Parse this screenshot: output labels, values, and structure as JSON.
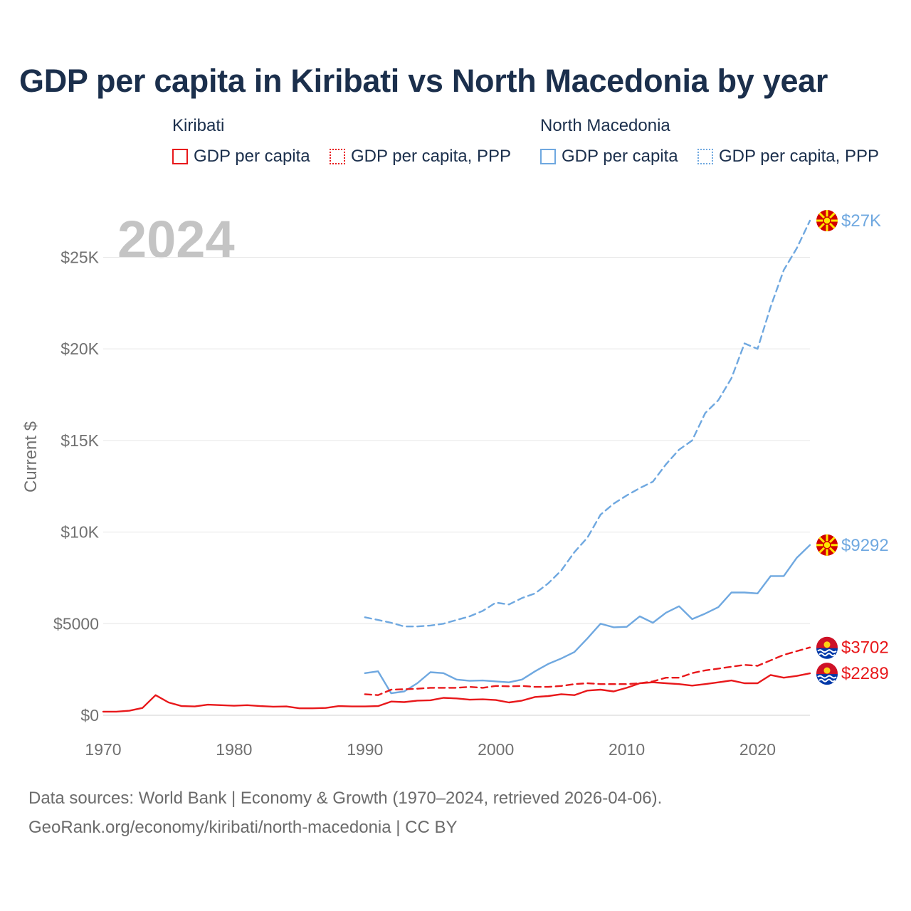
{
  "title": "GDP per capita in Kiribati vs North Macedonia by year",
  "legend": {
    "groups": [
      {
        "name": "Kiribati",
        "color": "#e8181b",
        "items": [
          {
            "label": "GDP per capita",
            "style": "solid"
          },
          {
            "label": "GDP per capita, PPP",
            "style": "dotted"
          }
        ]
      },
      {
        "name": "North Macedonia",
        "color": "#6fa8e0",
        "items": [
          {
            "label": "GDP per capita",
            "style": "solid"
          },
          {
            "label": "GDP per capita, PPP",
            "style": "dotted"
          }
        ]
      }
    ]
  },
  "year_watermark": "2024",
  "chart_data": {
    "type": "line",
    "title": "GDP per capita in Kiribati vs North Macedonia by year",
    "ylabel": "Current $",
    "xlabel": "",
    "xlim": [
      1970,
      2024
    ],
    "ylim": [
      0,
      27000
    ],
    "x_ticks": [
      1970,
      1980,
      1990,
      2000,
      2010,
      2020
    ],
    "y_ticks": [
      {
        "value": 0,
        "label": "$0"
      },
      {
        "value": 5000,
        "label": "$5000"
      },
      {
        "value": 10000,
        "label": "$10K"
      },
      {
        "value": 15000,
        "label": "$15K"
      },
      {
        "value": 20000,
        "label": "$20K"
      },
      {
        "value": 25000,
        "label": "$25K"
      }
    ],
    "grid": true,
    "series": [
      {
        "name": "North Macedonia GDP per capita, PPP",
        "country": "North Macedonia",
        "color": "#6fa8e0",
        "dash": "dashed",
        "end_label": "$27K",
        "x": [
          1990,
          1991,
          1992,
          1993,
          1994,
          1995,
          1996,
          1997,
          1998,
          1999,
          2000,
          2001,
          2002,
          2003,
          2004,
          2005,
          2006,
          2007,
          2008,
          2009,
          2010,
          2011,
          2012,
          2013,
          2014,
          2015,
          2016,
          2017,
          2018,
          2019,
          2020,
          2021,
          2022,
          2023,
          2024
        ],
        "values": [
          5350,
          5200,
          5050,
          4850,
          4850,
          4900,
          5000,
          5200,
          5400,
          5700,
          6150,
          6050,
          6400,
          6650,
          7200,
          7900,
          8900,
          9700,
          10950,
          11550,
          12000,
          12400,
          12750,
          13700,
          14500,
          15000,
          16500,
          17200,
          18400,
          20300,
          20000,
          22300,
          24300,
          25500,
          27000
        ]
      },
      {
        "name": "North Macedonia GDP per capita",
        "country": "North Macedonia",
        "color": "#6fa8e0",
        "dash": "solid",
        "end_label": "$9292",
        "x": [
          1990,
          1991,
          1992,
          1993,
          1994,
          1995,
          1996,
          1997,
          1998,
          1999,
          2000,
          2001,
          2002,
          2003,
          2004,
          2005,
          2006,
          2007,
          2008,
          2009,
          2010,
          2011,
          2012,
          2013,
          2014,
          2015,
          2016,
          2017,
          2018,
          2019,
          2020,
          2021,
          2022,
          2023,
          2024
        ],
        "values": [
          2300,
          2400,
          1200,
          1300,
          1750,
          2350,
          2300,
          1950,
          1880,
          1900,
          1850,
          1800,
          1950,
          2400,
          2800,
          3100,
          3450,
          4200,
          5000,
          4800,
          4830,
          5400,
          5050,
          5600,
          5950,
          5250,
          5550,
          5900,
          6700,
          6700,
          6650,
          7600,
          7600,
          8600,
          9292
        ]
      },
      {
        "name": "Kiribati GDP per capita, PPP",
        "country": "Kiribati",
        "color": "#e8181b",
        "dash": "dashed",
        "end_label": "$3702",
        "x": [
          1990,
          1991,
          1992,
          1993,
          1994,
          1995,
          1996,
          1997,
          1998,
          1999,
          2000,
          2001,
          2002,
          2003,
          2004,
          2005,
          2006,
          2007,
          2008,
          2009,
          2010,
          2011,
          2012,
          2013,
          2014,
          2015,
          2016,
          2017,
          2018,
          2019,
          2020,
          2021,
          2022,
          2023,
          2024
        ],
        "values": [
          1150,
          1100,
          1400,
          1420,
          1450,
          1500,
          1500,
          1500,
          1550,
          1500,
          1600,
          1580,
          1600,
          1550,
          1550,
          1600,
          1700,
          1750,
          1700,
          1700,
          1700,
          1750,
          1850,
          2050,
          2050,
          2300,
          2450,
          2550,
          2650,
          2750,
          2700,
          3000,
          3300,
          3500,
          3702
        ]
      },
      {
        "name": "Kiribati GDP per capita",
        "country": "Kiribati",
        "color": "#e8181b",
        "dash": "solid",
        "end_label": "$2289",
        "x": [
          1970,
          1971,
          1972,
          1973,
          1974,
          1975,
          1976,
          1977,
          1978,
          1979,
          1980,
          1981,
          1982,
          1983,
          1984,
          1985,
          1986,
          1987,
          1988,
          1989,
          1990,
          1991,
          1992,
          1993,
          1994,
          1995,
          1996,
          1997,
          1998,
          1999,
          2000,
          2001,
          2002,
          2003,
          2004,
          2005,
          2006,
          2007,
          2008,
          2009,
          2010,
          2011,
          2012,
          2013,
          2014,
          2015,
          2016,
          2017,
          2018,
          2019,
          2020,
          2021,
          2022,
          2023,
          2024
        ],
        "values": [
          200,
          200,
          250,
          400,
          1100,
          700,
          500,
          480,
          580,
          550,
          520,
          550,
          500,
          470,
          480,
          380,
          380,
          400,
          500,
          480,
          480,
          500,
          750,
          720,
          800,
          820,
          950,
          920,
          850,
          870,
          830,
          700,
          800,
          1000,
          1050,
          1150,
          1100,
          1350,
          1400,
          1300,
          1500,
          1750,
          1800,
          1750,
          1700,
          1620,
          1700,
          1800,
          1900,
          1750,
          1750,
          2200,
          2050,
          2150,
          2289
        ]
      }
    ]
  },
  "source": {
    "line1": "Data sources: World Bank | Economy & Growth (1970–2024, retrieved 2026-04-06).",
    "line2": "GeoRank.org/economy/kiribati/north-macedonia | CC BY"
  }
}
